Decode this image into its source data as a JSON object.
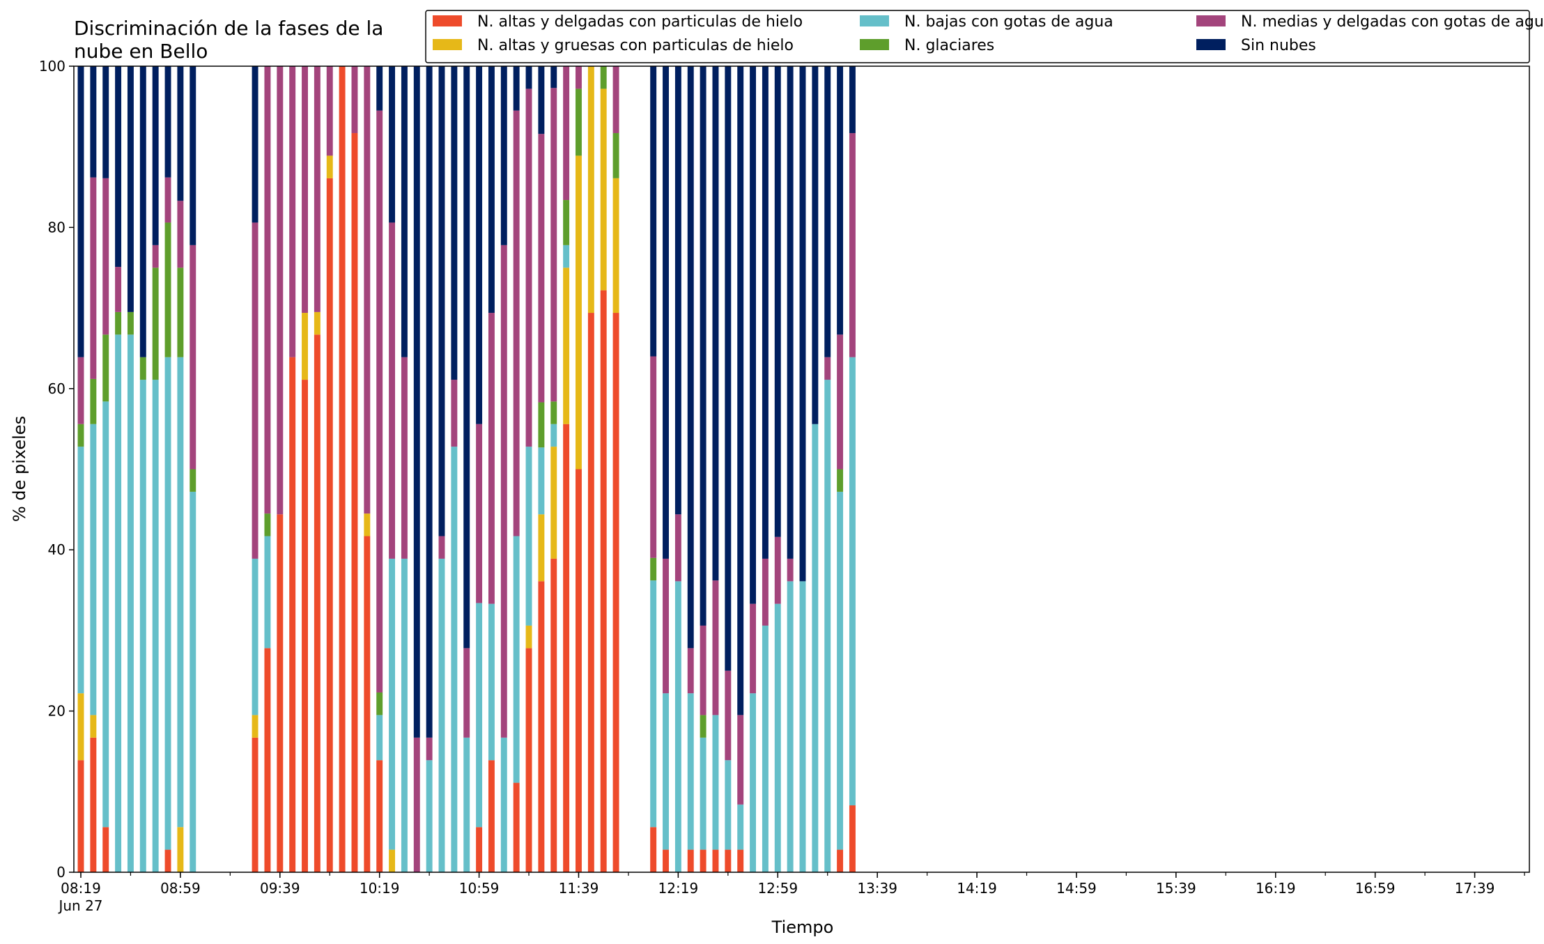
{
  "chart_data": {
    "type": "bar",
    "stacked": true,
    "title": "Discriminación de la fases de la nube en Bello",
    "title_lines": [
      "Discriminación de la fases de la",
      "nube en Bello"
    ],
    "xlabel": "Tiempo",
    "ylabel": "% de pixeles",
    "ylim": [
      0,
      100
    ],
    "yticks": [
      0,
      20,
      40,
      60,
      80,
      100
    ],
    "grid": false,
    "legend_placement": "top-right",
    "x_start": "08:19",
    "x_step_minutes": 5,
    "x_end": "17:59",
    "x_ticks": [
      {
        "label": "08:19",
        "sub": "Jun 27"
      },
      {
        "label": "08:59",
        "sub": ""
      },
      {
        "label": "09:39",
        "sub": ""
      },
      {
        "label": "10:19",
        "sub": ""
      },
      {
        "label": "10:59",
        "sub": ""
      },
      {
        "label": "11:39",
        "sub": ""
      },
      {
        "label": "12:19",
        "sub": ""
      },
      {
        "label": "12:59",
        "sub": ""
      },
      {
        "label": "13:39",
        "sub": ""
      },
      {
        "label": "14:19",
        "sub": ""
      },
      {
        "label": "14:59",
        "sub": ""
      },
      {
        "label": "15:39",
        "sub": ""
      },
      {
        "label": "16:19",
        "sub": ""
      },
      {
        "label": "16:59",
        "sub": ""
      },
      {
        "label": "17:39",
        "sub": ""
      }
    ],
    "series": [
      {
        "name": "N. altas y delgadas con particulas de hielo",
        "color": "#EE4B2B"
      },
      {
        "name": "N. altas y gruesas con particulas de hielo",
        "color": "#E6B818"
      },
      {
        "name": "N. bajas con gotas de agua",
        "color": "#65BFC9"
      },
      {
        "name": "N. glaciares",
        "color": "#5E9E2C"
      },
      {
        "name": "N. medias y delgadas con gotas de agua",
        "color": "#A3447C"
      },
      {
        "name": "Sin nubes",
        "color": "#001F5F"
      }
    ],
    "bars": [
      {
        "time": "08:19",
        "values": [
          13.9,
          8.3,
          30.6,
          2.8,
          8.3,
          36.1
        ]
      },
      {
        "time": "08:24",
        "values": [
          16.7,
          2.8,
          36.1,
          5.6,
          25.0,
          13.8
        ]
      },
      {
        "time": "08:29",
        "values": [
          5.6,
          0,
          52.8,
          8.3,
          19.4,
          13.9
        ]
      },
      {
        "time": "08:34",
        "values": [
          0,
          0,
          66.7,
          2.8,
          5.6,
          24.9
        ]
      },
      {
        "time": "08:39",
        "values": [
          0,
          0,
          66.7,
          2.8,
          0,
          30.5
        ]
      },
      {
        "time": "08:44",
        "values": [
          0,
          0,
          61.1,
          2.8,
          0,
          36.1
        ]
      },
      {
        "time": "08:49",
        "values": [
          0,
          0,
          61.1,
          13.9,
          2.8,
          22.2
        ]
      },
      {
        "time": "08:54",
        "values": [
          2.8,
          0,
          61.1,
          16.7,
          5.6,
          13.8
        ]
      },
      {
        "time": "08:59",
        "values": [
          0,
          5.6,
          58.3,
          11.1,
          8.3,
          16.7
        ]
      },
      {
        "time": "09:04",
        "values": [
          0,
          0,
          47.2,
          2.8,
          27.8,
          22.2
        ]
      },
      {
        "time": "09:29",
        "values": [
          16.7,
          2.8,
          19.4,
          0,
          41.7,
          19.4
        ]
      },
      {
        "time": "09:34",
        "values": [
          27.8,
          0,
          13.9,
          2.8,
          55.5,
          0
        ]
      },
      {
        "time": "09:39",
        "values": [
          44.4,
          0,
          0,
          0,
          55.6,
          0
        ]
      },
      {
        "time": "09:44",
        "values": [
          63.9,
          0,
          0,
          0,
          36.1,
          0
        ]
      },
      {
        "time": "09:49",
        "values": [
          61.1,
          8.3,
          0,
          0,
          30.6,
          0
        ]
      },
      {
        "time": "09:54",
        "values": [
          66.7,
          2.8,
          0,
          0,
          30.5,
          0
        ]
      },
      {
        "time": "09:59",
        "values": [
          86.1,
          2.8,
          0,
          0,
          11.1,
          0
        ]
      },
      {
        "time": "10:04",
        "values": [
          100,
          0,
          0,
          0,
          0,
          0
        ]
      },
      {
        "time": "10:09",
        "values": [
          91.7,
          0,
          0,
          0,
          8.3,
          0
        ]
      },
      {
        "time": "10:14",
        "values": [
          41.7,
          2.8,
          0,
          0,
          55.5,
          0
        ]
      },
      {
        "time": "10:19",
        "values": [
          13.9,
          0,
          5.6,
          2.8,
          72.2,
          5.5
        ]
      },
      {
        "time": "10:24",
        "values": [
          0,
          2.8,
          36.1,
          0,
          41.7,
          19.4
        ]
      },
      {
        "time": "10:29",
        "values": [
          0,
          0,
          38.9,
          0,
          25.0,
          36.1
        ]
      },
      {
        "time": "10:34",
        "values": [
          0,
          0,
          0,
          0,
          16.7,
          83.3
        ]
      },
      {
        "time": "10:39",
        "values": [
          0,
          0,
          13.9,
          0,
          2.8,
          83.3
        ]
      },
      {
        "time": "10:44",
        "values": [
          0,
          0,
          38.9,
          0,
          2.8,
          58.3
        ]
      },
      {
        "time": "10:49",
        "values": [
          0,
          0,
          52.8,
          0,
          8.3,
          38.9
        ]
      },
      {
        "time": "10:54",
        "values": [
          0,
          0,
          16.7,
          0,
          11.1,
          72.2
        ]
      },
      {
        "time": "10:59",
        "values": [
          5.6,
          0,
          27.8,
          0,
          22.2,
          44.4
        ]
      },
      {
        "time": "11:04",
        "values": [
          13.9,
          0,
          19.4,
          0,
          36.1,
          30.6
        ]
      },
      {
        "time": "11:09",
        "values": [
          0,
          0,
          16.7,
          0,
          61.1,
          22.2
        ]
      },
      {
        "time": "11:14",
        "values": [
          11.1,
          0,
          30.6,
          0,
          52.8,
          5.5
        ]
      },
      {
        "time": "11:19",
        "values": [
          27.8,
          2.8,
          22.2,
          0,
          44.4,
          2.8
        ]
      },
      {
        "time": "11:24",
        "values": [
          36.1,
          8.3,
          8.3,
          5.6,
          33.3,
          8.4
        ]
      },
      {
        "time": "11:29",
        "values": [
          38.9,
          13.9,
          2.8,
          2.8,
          38.9,
          2.7
        ]
      },
      {
        "time": "11:34",
        "values": [
          55.6,
          19.4,
          2.8,
          5.6,
          16.6,
          0
        ]
      },
      {
        "time": "11:39",
        "values": [
          50.0,
          38.9,
          0,
          8.3,
          2.8,
          0
        ]
      },
      {
        "time": "11:44",
        "values": [
          69.4,
          30.6,
          0,
          0,
          0,
          0
        ]
      },
      {
        "time": "11:49",
        "values": [
          72.2,
          25.0,
          0,
          2.8,
          0,
          0
        ]
      },
      {
        "time": "11:54",
        "values": [
          69.4,
          16.7,
          0,
          5.6,
          8.3,
          0
        ]
      },
      {
        "time": "12:09",
        "values": [
          5.6,
          0,
          30.6,
          2.8,
          25.0,
          36.0
        ]
      },
      {
        "time": "12:14",
        "values": [
          2.8,
          0,
          19.4,
          0,
          16.7,
          61.1
        ]
      },
      {
        "time": "12:19",
        "values": [
          0,
          0,
          36.1,
          0,
          8.3,
          55.6
        ]
      },
      {
        "time": "12:24",
        "values": [
          2.8,
          0,
          19.4,
          0,
          5.6,
          72.2
        ]
      },
      {
        "time": "12:29",
        "values": [
          2.8,
          0,
          13.9,
          2.8,
          11.1,
          69.4
        ]
      },
      {
        "time": "12:34",
        "values": [
          2.8,
          0,
          16.7,
          0,
          16.7,
          63.8
        ]
      },
      {
        "time": "12:39",
        "values": [
          2.8,
          0,
          11.1,
          0,
          11.1,
          75.0
        ]
      },
      {
        "time": "12:44",
        "values": [
          2.8,
          0,
          5.6,
          0,
          11.1,
          80.5
        ]
      },
      {
        "time": "12:49",
        "values": [
          0,
          0,
          22.2,
          0,
          11.1,
          66.7
        ]
      },
      {
        "time": "12:54",
        "values": [
          0,
          0,
          30.6,
          0,
          8.3,
          61.1
        ]
      },
      {
        "time": "12:59",
        "values": [
          0,
          0,
          33.3,
          0,
          8.3,
          58.4
        ]
      },
      {
        "time": "13:04",
        "values": [
          0,
          0,
          36.1,
          0,
          2.8,
          61.1
        ]
      },
      {
        "time": "13:09",
        "values": [
          0,
          0,
          36.1,
          0,
          0,
          63.9
        ]
      },
      {
        "time": "13:14",
        "values": [
          0,
          0,
          55.6,
          0,
          0,
          44.4
        ]
      },
      {
        "time": "13:19",
        "values": [
          0,
          0,
          61.1,
          0,
          2.8,
          36.1
        ]
      },
      {
        "time": "13:24",
        "values": [
          2.8,
          0,
          44.4,
          2.8,
          16.7,
          33.3
        ]
      },
      {
        "time": "13:29",
        "values": [
          8.3,
          0,
          55.6,
          0,
          27.8,
          8.3
        ]
      }
    ]
  }
}
